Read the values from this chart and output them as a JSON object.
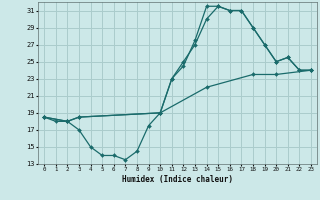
{
  "xlabel": "Humidex (Indice chaleur)",
  "bg_color": "#cce8e8",
  "grid_color": "#aacccc",
  "line_color": "#1a6b6b",
  "xlim": [
    -0.5,
    23.5
  ],
  "ylim": [
    13,
    32
  ],
  "xticks": [
    0,
    1,
    2,
    3,
    4,
    5,
    6,
    7,
    8,
    9,
    10,
    11,
    12,
    13,
    14,
    15,
    16,
    17,
    18,
    19,
    20,
    21,
    22,
    23
  ],
  "yticks": [
    13,
    15,
    17,
    19,
    21,
    23,
    25,
    27,
    29,
    31
  ],
  "line1_x": [
    0,
    1,
    2,
    3,
    4,
    5,
    6,
    7,
    8,
    9,
    10,
    11,
    12,
    13,
    14,
    15,
    16,
    17,
    18,
    19,
    20,
    21,
    22,
    23
  ],
  "line1_y": [
    18.5,
    18.0,
    18.0,
    17.0,
    15.0,
    14.0,
    14.0,
    13.5,
    14.5,
    17.5,
    19.0,
    23.0,
    24.5,
    27.5,
    31.5,
    31.5,
    31.0,
    31.0,
    29.0,
    27.0,
    25.0,
    25.5,
    24.0,
    24.0
  ],
  "line2_x": [
    0,
    2,
    3,
    10,
    11,
    12,
    13,
    14,
    15,
    16,
    17,
    18,
    19,
    20,
    21,
    22,
    23
  ],
  "line2_y": [
    18.5,
    18.0,
    18.5,
    19.0,
    23.0,
    25.0,
    27.0,
    30.0,
    31.5,
    31.0,
    31.0,
    29.0,
    27.0,
    25.0,
    25.5,
    24.0,
    24.0
  ],
  "line3_x": [
    0,
    2,
    3,
    10,
    14,
    18,
    20,
    23
  ],
  "line3_y": [
    18.5,
    18.0,
    18.5,
    19.0,
    22.0,
    23.5,
    23.5,
    24.0
  ]
}
